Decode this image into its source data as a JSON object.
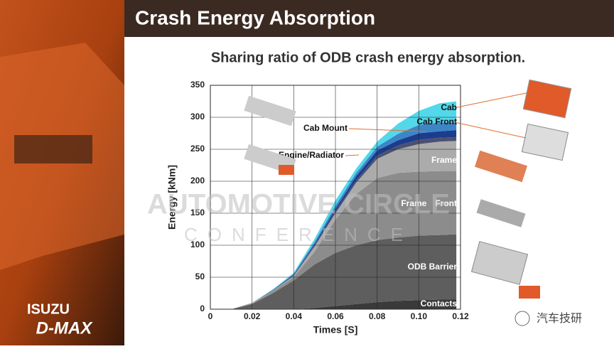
{
  "slide": {
    "title": "Crash Energy Absorption",
    "brand": "ISUZU",
    "model": "D-MAX",
    "watermark": [
      "AUTOMOTIVE CIRCLE",
      "CONFERENCE"
    ],
    "source": "汽车技研"
  },
  "chart_data": {
    "type": "stacked-area",
    "title": "Sharing ratio of ODB crash energy absorption.",
    "x_label": "Times [S]",
    "y_label": "Energy [kNm]",
    "x": [
      0,
      0.01,
      0.02,
      0.03,
      0.04,
      0.05,
      0.06,
      0.07,
      0.08,
      0.09,
      0.1,
      0.11,
      0.118
    ],
    "xlim": [
      0,
      0.12
    ],
    "xticks": [
      0,
      0.02,
      0.04,
      0.06,
      0.08,
      {
        "value": 0.1,
        "label": "0.10"
      },
      0.12
    ],
    "ylim": [
      0,
      350
    ],
    "yticks": [
      0,
      50,
      100,
      150,
      200,
      250,
      300,
      350
    ],
    "grid": true,
    "series": [
      {
        "name": "Contacts",
        "color": "#3a3a3a",
        "values": [
          0,
          0,
          0,
          0,
          0,
          2,
          5,
          8,
          11,
          13,
          14,
          15,
          15
        ]
      },
      {
        "name": "ODB Barrier",
        "color": "#5e5e5e",
        "values": [
          0,
          0,
          8,
          25,
          45,
          68,
          83,
          92,
          97,
          99,
          101,
          101,
          102
        ]
      },
      {
        "name": "Frame　Front",
        "color": "#8c8c8c",
        "values": [
          0,
          0,
          1,
          3,
          5,
          20,
          52,
          80,
          97,
          101,
          100,
          100,
          99
        ]
      },
      {
        "name": "Frame",
        "color": "#ababab",
        "values": [
          0,
          0,
          1,
          1,
          2,
          8,
          10,
          18,
          30,
          37,
          43,
          46,
          47
        ]
      },
      {
        "name": "Engine/Radiator",
        "color": "#4c5170",
        "values": [
          0,
          0,
          0,
          0,
          1,
          2,
          3,
          4,
          5,
          6,
          7,
          6,
          6
        ]
      },
      {
        "name": "Cab Mount",
        "color": "#1c3c8c",
        "values": [
          0,
          0,
          0,
          1,
          1,
          2,
          4,
          6,
          8,
          8,
          10,
          10,
          11
        ]
      },
      {
        "name": "Cab Front",
        "color": "#3c86c8",
        "values": [
          0,
          0,
          0,
          0,
          1,
          3,
          5,
          5,
          6,
          10,
          13,
          14,
          12
        ]
      },
      {
        "name": "Cab",
        "color": "#52d8ea",
        "values": [
          0,
          0,
          0,
          1,
          2,
          5,
          8,
          7,
          8,
          16,
          22,
          30,
          33
        ]
      }
    ]
  }
}
